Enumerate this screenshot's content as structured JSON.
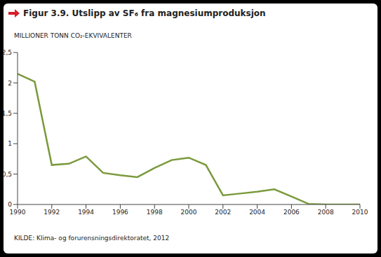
{
  "chart_data": {
    "type": "line",
    "title": "Figur 3.9. Utslipp av SF₆ fra magnesiumproduksjon",
    "y_label": "MILLIONER TONN CO₂-EKVIVALENTER",
    "source": "KILDE: Klima- og forurensningsdirektoratet, 2012",
    "x": [
      1990,
      1991,
      1992,
      1993,
      1994,
      1995,
      1996,
      1997,
      1998,
      1999,
      2000,
      2001,
      2002,
      2003,
      2004,
      2005,
      2006,
      2007,
      2008,
      2009,
      2010
    ],
    "values": [
      2.15,
      2.02,
      0.65,
      0.67,
      0.79,
      0.52,
      0.48,
      0.45,
      0.6,
      0.73,
      0.77,
      0.65,
      0.15,
      0.18,
      0.21,
      0.25,
      0.13,
      0.01,
      0.0,
      0.0,
      0.0
    ],
    "color": "#7a9a3c",
    "xlim": [
      1990,
      2010
    ],
    "xticks": [
      1990,
      1992,
      1994,
      1996,
      1998,
      2000,
      2002,
      2004,
      2006,
      2008,
      2010
    ],
    "ylim": [
      0,
      2.5
    ],
    "yticks": [
      0,
      {
        "value": 0.5,
        "label": "0,5"
      },
      1,
      {
        "value": 1.5,
        "label": "1,5"
      },
      2,
      {
        "value": 2.5,
        "label": "2,5"
      }
    ],
    "grid": false
  }
}
